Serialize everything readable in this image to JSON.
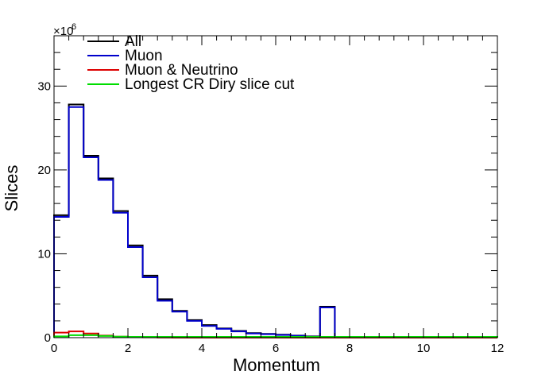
{
  "chart_data": {
    "type": "line",
    "style": "histogram-step",
    "xlabel": "Momentum",
    "ylabel": "Slices",
    "xlim": [
      0,
      12
    ],
    "ylim": [
      0,
      36000000
    ],
    "y_multiplier_label": "×10",
    "y_multiplier_exponent": "6",
    "x_ticks": [
      0,
      2,
      4,
      6,
      8,
      10,
      12
    ],
    "y_ticks": [
      0,
      10,
      20,
      30
    ],
    "y_tick_labels": [
      "0",
      "10",
      "20",
      "30"
    ],
    "x_tick_labels": [
      "0",
      "2",
      "4",
      "6",
      "8",
      "10",
      "12"
    ],
    "grid": false,
    "legend_position": "top-left",
    "bin_edges": [
      0,
      0.4,
      0.8,
      1.2,
      1.6,
      2.0,
      2.4,
      2.8,
      3.2,
      3.6,
      4.0,
      4.4,
      4.8,
      5.2,
      5.6,
      6.0,
      6.4,
      6.8,
      7.2,
      7.6,
      8.0,
      8.4,
      8.8,
      9.2,
      9.6,
      10.0,
      10.4,
      10.8,
      11.2,
      11.6,
      12.0
    ],
    "series": [
      {
        "name": "All",
        "color": "#000000",
        "values": [
          14.6,
          27.8,
          21.7,
          19.0,
          15.1,
          11.0,
          7.4,
          4.6,
          3.2,
          2.1,
          1.5,
          1.1,
          0.8,
          0.55,
          0.45,
          0.35,
          0.25,
          0.15,
          3.7,
          0.0,
          0.0,
          0.0,
          0.0,
          0.0,
          0.0,
          0.0,
          0.0,
          0.0,
          0.0,
          0.0
        ]
      },
      {
        "name": "Muon",
        "color": "#0000cc",
        "values": [
          14.4,
          27.5,
          21.5,
          18.8,
          14.9,
          10.8,
          7.2,
          4.4,
          3.1,
          2.0,
          1.4,
          1.05,
          0.75,
          0.5,
          0.42,
          0.32,
          0.22,
          0.12,
          3.6,
          0.0,
          0.0,
          0.0,
          0.0,
          0.0,
          0.0,
          0.0,
          0.0,
          0.0,
          0.0,
          0.0
        ]
      },
      {
        "name": "Muon & Neutrino",
        "color": "#dd0000",
        "values": [
          0.6,
          0.75,
          0.5,
          0.25,
          0.12,
          0.06,
          0.03,
          0.01,
          0.0,
          0.0,
          0.0,
          0.0,
          0.0,
          0.0,
          0.0,
          0.0,
          0.0,
          0.0,
          0.0,
          0.0,
          0.0,
          0.0,
          0.0,
          0.0,
          0.0,
          0.0,
          0.0,
          0.0,
          0.0,
          0.0
        ]
      },
      {
        "name": "Longest CR Diry slice cut",
        "color": "#00dd00",
        "values": [
          0.15,
          0.3,
          0.3,
          0.2,
          0.12,
          0.1,
          0.1,
          0.1,
          0.1,
          0.1,
          0.1,
          0.1,
          0.1,
          0.1,
          0.1,
          0.1,
          0.1,
          0.1,
          0.1,
          0.1,
          0.1,
          0.1,
          0.1,
          0.1,
          0.1,
          0.1,
          0.1,
          0.1,
          0.1,
          0.1
        ]
      }
    ]
  }
}
